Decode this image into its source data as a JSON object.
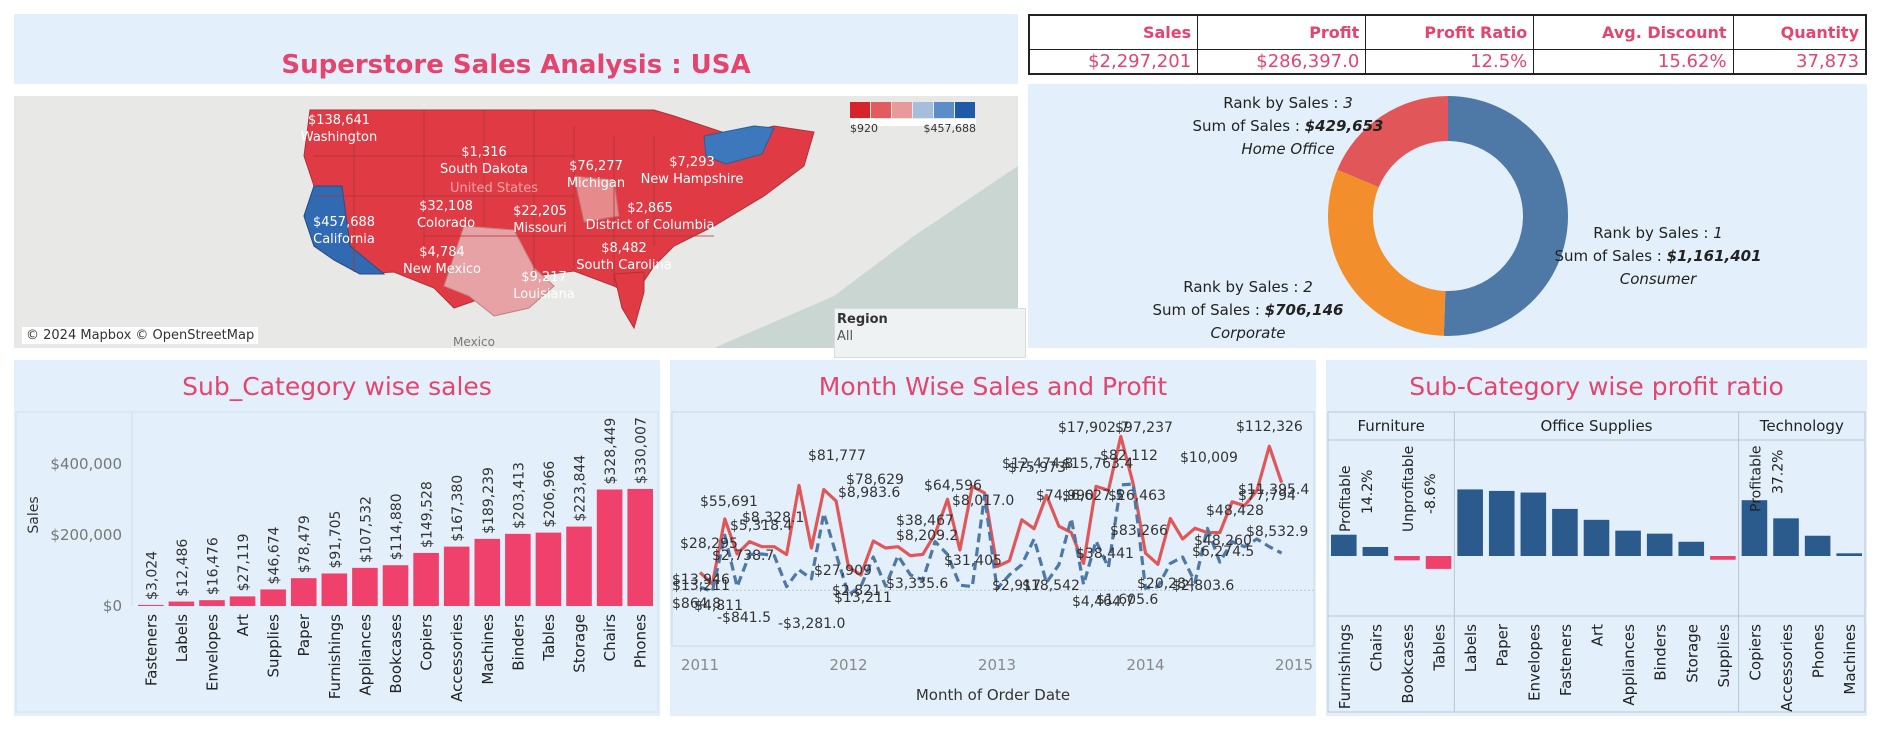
{
  "header": {
    "title": "Superstore Sales Analysis : USA"
  },
  "kpis": [
    {
      "label": "Sales",
      "value": "$2,297,201"
    },
    {
      "label": "Profit",
      "value": "$286,397.0"
    },
    {
      "label": "Profit Ratio",
      "value": "12.5%"
    },
    {
      "label": "Avg. Discount",
      "value": "15.62%"
    },
    {
      "label": "Quantity",
      "value": "37,873"
    }
  ],
  "map": {
    "copyright": "© 2024 Mapbox © OpenStreetMap",
    "legend_min": "$920",
    "legend_max": "$457,688",
    "legend_colors": [
      "#d7232a",
      "#e15b5f",
      "#e8999a",
      "#a5bedb",
      "#5c8dc6",
      "#1e5aa8"
    ],
    "country_label": "United States",
    "mexico_label": "Mexico",
    "labels": [
      {
        "value": "$138,641",
        "name": "Washington"
      },
      {
        "value": "$1,316",
        "name": "South Dakota"
      },
      {
        "value": "$76,277",
        "name": "Michigan"
      },
      {
        "value": "$7,293",
        "name": "New Hampshire"
      },
      {
        "value": "$32,108",
        "name": "Colorado"
      },
      {
        "value": "$22,205",
        "name": "Missouri"
      },
      {
        "value": "$2,865",
        "name": "District of Columbia"
      },
      {
        "value": "$457,688",
        "name": "California"
      },
      {
        "value": "$4,784",
        "name": "New Mexico"
      },
      {
        "value": "$8,482",
        "name": "South Carolina"
      },
      {
        "value": "$9,217",
        "name": "Louisiana"
      }
    ]
  },
  "region_filter": {
    "label": "Region",
    "value": "All"
  },
  "donut": {
    "segments": [
      {
        "rank": "1",
        "sales": "$1,161,401",
        "segment": "Consumer",
        "color": "#4e79a7",
        "value": 1161401
      },
      {
        "rank": "2",
        "sales": "$706,146",
        "segment": "Corporate",
        "color": "#f28e2b",
        "value": 706146
      },
      {
        "rank": "3",
        "sales": "$429,653",
        "segment": "Home Office",
        "color": "#e15759",
        "value": 429653
      }
    ],
    "rank_label": "Rank by Sales : ",
    "sum_label": "Sum of Sales : "
  },
  "subcat_sales": {
    "title": "Sub_Category wise sales",
    "ylabel": "Sales",
    "yticks": [
      "$0",
      "$200,000",
      "$400,000"
    ],
    "color": "#f0416c",
    "chart_data": {
      "type": "bar",
      "categories": [
        "Fasteners",
        "Labels",
        "Envelopes",
        "Art",
        "Supplies",
        "Paper",
        "Furnishings",
        "Appliances",
        "Bookcases",
        "Copiers",
        "Accessories",
        "Machines",
        "Binders",
        "Tables",
        "Storage",
        "Chairs",
        "Phones"
      ],
      "values": [
        3024,
        12486,
        16476,
        27119,
        46674,
        78479,
        91705,
        107532,
        114880,
        149528,
        167380,
        189239,
        203413,
        206966,
        223844,
        328449,
        330007
      ],
      "labels": [
        "$3,024",
        "$12,486",
        "$16,476",
        "$27,119",
        "$46,674",
        "$78,479",
        "$91,705",
        "$107,532",
        "$114,880",
        "$149,528",
        "$167,380",
        "$189,239",
        "$203,413",
        "$206,966",
        "$223,844",
        "$328,449",
        "$330,007"
      ],
      "ylim": [
        0,
        530000
      ]
    }
  },
  "month_sales_profit": {
    "title": "Month Wise Sales and Profit",
    "xlabel": "Month of Order Date",
    "xticks": [
      "2011",
      "2012",
      "2013",
      "2014",
      "2015"
    ],
    "chart_data": {
      "type": "line",
      "x": [
        "2011-01",
        "2011-02",
        "2011-03",
        "2011-04",
        "2011-05",
        "2011-06",
        "2011-07",
        "2011-08",
        "2011-09",
        "2011-10",
        "2011-11",
        "2011-12",
        "2012-01",
        "2012-02",
        "2012-03",
        "2012-04",
        "2012-05",
        "2012-06",
        "2012-07",
        "2012-08",
        "2012-09",
        "2012-10",
        "2012-11",
        "2012-12",
        "2013-01",
        "2013-02",
        "2013-03",
        "2013-04",
        "2013-05",
        "2013-06",
        "2013-07",
        "2013-08",
        "2013-09",
        "2013-10",
        "2013-11",
        "2013-12",
        "2014-01",
        "2014-02",
        "2014-03",
        "2014-04",
        "2014-05",
        "2014-06",
        "2014-07",
        "2014-08",
        "2014-09",
        "2014-10",
        "2014-11",
        "2014-12"
      ],
      "ylim": [
        -6000,
        125000
      ],
      "series": [
        {
          "name": "Sales",
          "color": "#e15759",
          "style": "solid",
          "values": [
            13946,
            4811,
            55691,
            28295,
            38000,
            34000,
            34000,
            27909,
            81777,
            33000,
            78629,
            69545,
            18174,
            11951,
            38467,
            33000,
            34000,
            27000,
            28000,
            44000,
            71000,
            31405,
            81000,
            75973,
            18542,
            23000,
            55000,
            48000,
            74000,
            50000,
            45000,
            21000,
            81000,
            78000,
            120000,
            83266,
            28953,
            20284,
            56000,
            40000,
            48428,
            45000,
            45000,
            69000,
            66000,
            77794,
            112326,
            84000
          ]
        },
        {
          "name": "Profit",
          "color": "#4e79a7",
          "style": "dashed",
          "values": [
            2450,
            -841.5,
            43000,
            2738.7,
            28000,
            28328.1,
            27000,
            2821,
            16000,
            8983.6,
            60000,
            28209.2,
            -3281.0,
            3000,
            26000,
            3335.6,
            27000,
            12000,
            8000,
            38017.0,
            28000,
            4000,
            2900,
            74000,
            1000,
            12000,
            20000,
            40000,
            6000,
            20000,
            56000,
            4464.7,
            38441,
            17902.7,
            82112,
            83000,
            1605.6,
            2803.6,
            21000,
            26000,
            6274.5,
            48260,
            22000,
            38000,
            34000,
            40000,
            34000,
            29000
          ]
        }
      ]
    },
    "point_labels": [
      "$13,946",
      "$4,811",
      "$55,691",
      "$28,295",
      "$5,318.4",
      "$2,738.7",
      "$8,328.1",
      "$27,909",
      "$81,777",
      "$8,983.6",
      "$78,629",
      "$2,821",
      "$13,211",
      "$38,467",
      "$3,335.6",
      "$8,209.2",
      "$64,596",
      "$31,405",
      "$8,017.0",
      "$12,474.8",
      "$75,973",
      "$2,917",
      "$18,542",
      "$74,990",
      "$6,627.5",
      "$15,763.4",
      "$4,464.7",
      "$38,441",
      "$17,902.7",
      "$82,112",
      "$97,237",
      "$83,266",
      "$20,284",
      "$1,605.6",
      "$2,803.6",
      "$48,428",
      "$48,260",
      "$6,274.5",
      "$112,326",
      "$11,395.4",
      "$77,794",
      "$8,532.9",
      "$13,211",
      "-$841.5",
      "-$3,281.0",
      "$864.8",
      "$26,463",
      "$10,009"
    ]
  },
  "profit_ratio": {
    "title": "Sub-Category wise profit ratio",
    "groups": [
      {
        "name": "Furniture",
        "items": [
          "Furnishings",
          "Chairs",
          "Bookcases",
          "Tables"
        ],
        "values": [
          14.2,
          6.0,
          -2.9,
          -8.6
        ]
      },
      {
        "name": "Office Supplies",
        "items": [
          "Labels",
          "Paper",
          "Envelopes",
          "Fasteners",
          "Art",
          "Appliances",
          "Binders",
          "Storage",
          "Supplies"
        ],
        "values": [
          44.4,
          43.4,
          42.3,
          31.4,
          24.1,
          16.9,
          14.9,
          9.5,
          -2.5
        ]
      },
      {
        "name": "Technology",
        "items": [
          "Copiers",
          "Accessories",
          "Phones",
          "Machines"
        ],
        "values": [
          37.2,
          25.1,
          13.5,
          1.8
        ]
      }
    ],
    "callouts": [
      {
        "status": "Profitable",
        "pct": "14.2%"
      },
      {
        "status": "Unprofitable",
        "pct": "-8.6%"
      },
      {
        "status": "Profitable",
        "pct": "37.2%"
      }
    ],
    "pos_color": "#2a5b8c",
    "neg_color": "#f0416c"
  }
}
